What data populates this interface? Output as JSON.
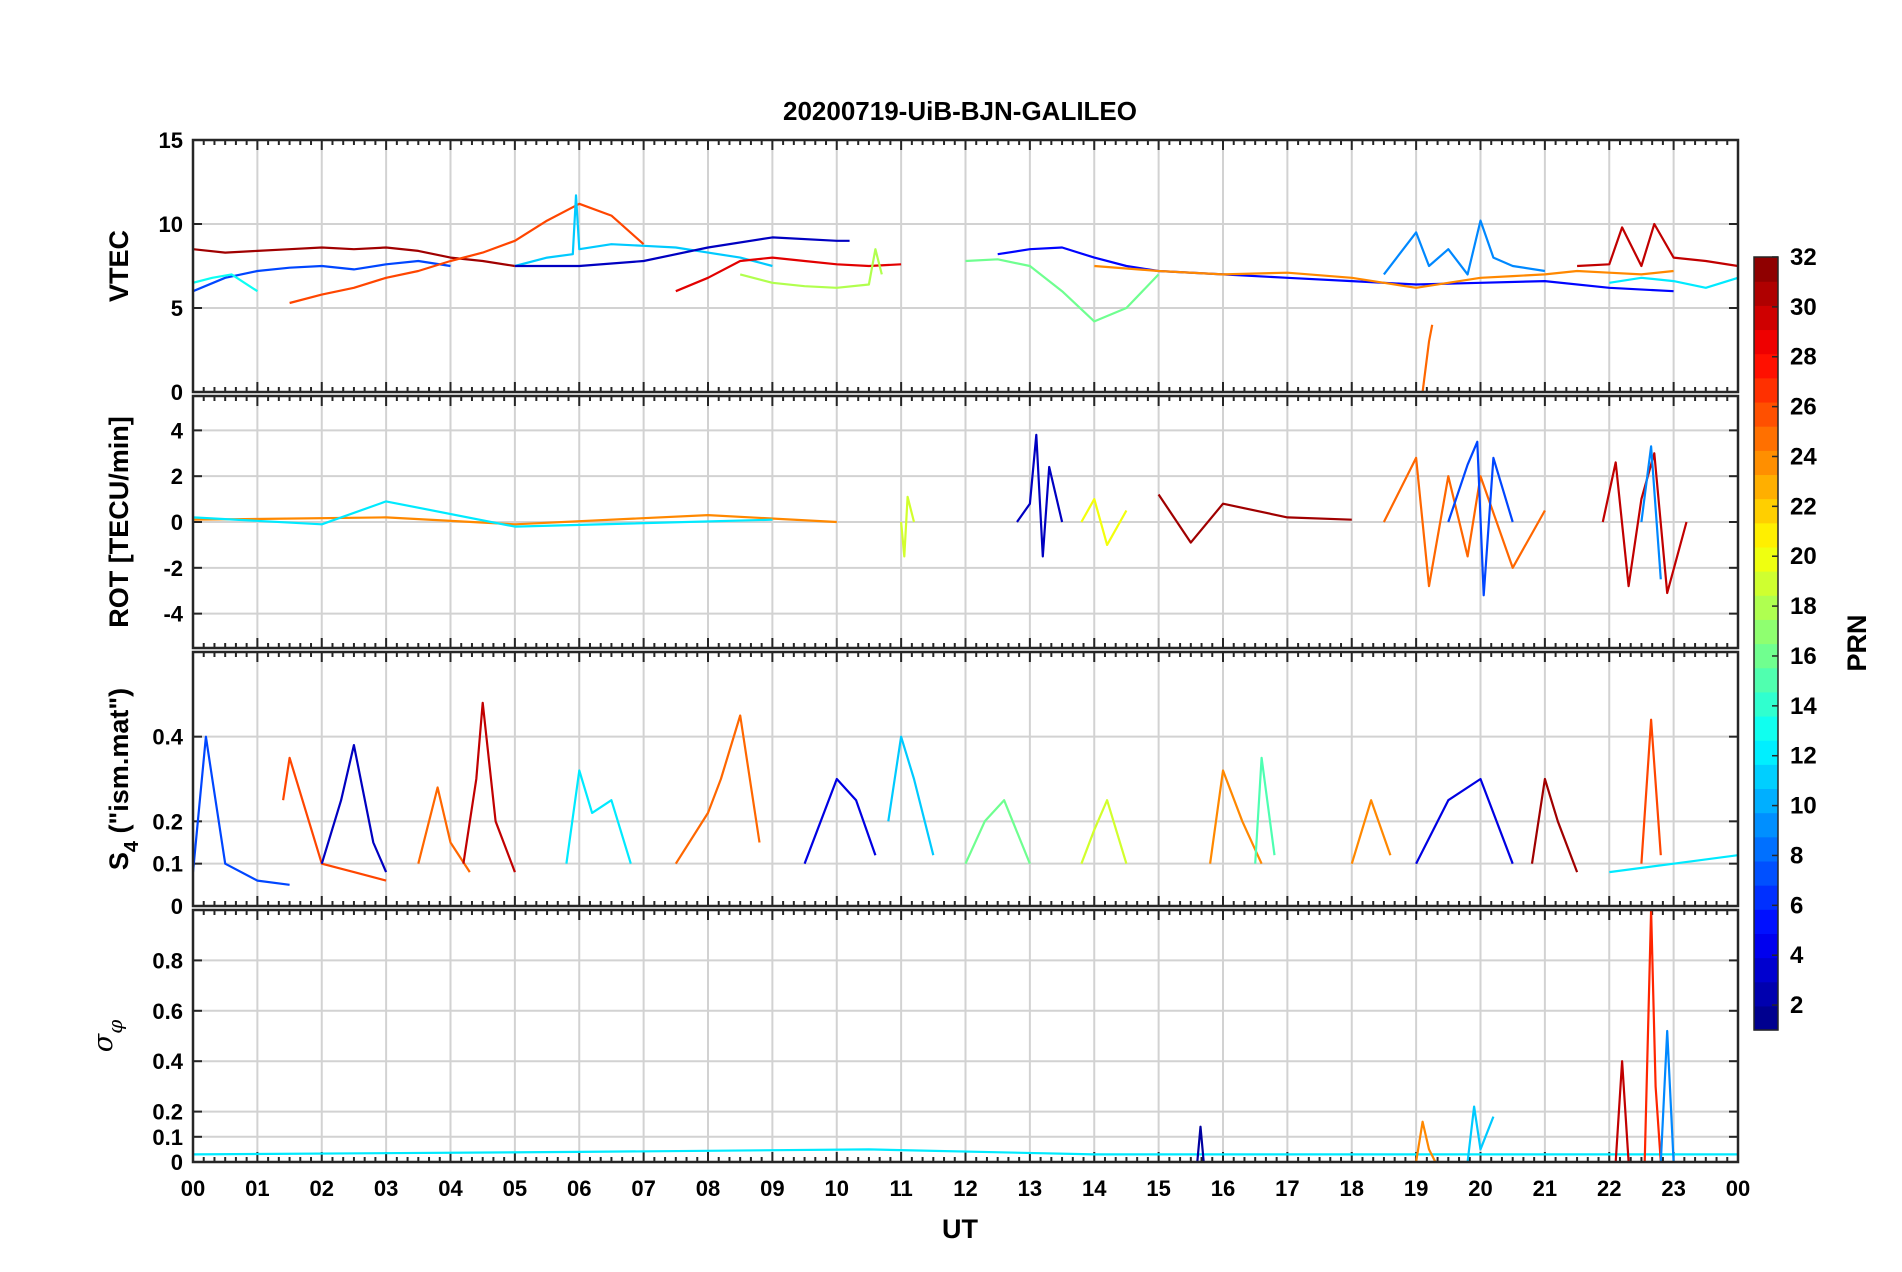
{
  "chart_data": {
    "type": "line",
    "title": "20200719-UiB-BJN-GALILEO",
    "xlabel": "UT",
    "x_tick_labels": [
      "00",
      "01",
      "02",
      "03",
      "04",
      "05",
      "06",
      "07",
      "08",
      "09",
      "10",
      "11",
      "12",
      "13",
      "14",
      "15",
      "16",
      "17",
      "18",
      "19",
      "20",
      "21",
      "22",
      "23",
      "00"
    ],
    "xlim_hours": [
      0,
      24
    ],
    "grid": true,
    "colorbar": {
      "label": "PRN",
      "range": [
        1,
        32
      ],
      "tick_labels": [
        "2",
        "4",
        "6",
        "8",
        "10",
        "12",
        "14",
        "16",
        "18",
        "20",
        "22",
        "24",
        "26",
        "28",
        "30",
        "32"
      ],
      "colormap": "jet",
      "placement": "right"
    },
    "panels": [
      {
        "id": "vtec",
        "ylabel": "VTEC",
        "ylim": [
          0,
          15
        ],
        "yticks": [
          0,
          5,
          10,
          15
        ],
        "series": [
          {
            "prn": 31,
            "x": [
              0,
              0.5,
              1,
              1.5,
              2,
              2.5,
              3,
              3.5,
              4,
              4.5,
              5
            ],
            "y": [
              8.5,
              8.3,
              8.4,
              8.5,
              8.6,
              8.5,
              8.6,
              8.4,
              8.0,
              7.8,
              7.5
            ]
          },
          {
            "prn": 7,
            "x": [
              0,
              0.5,
              1,
              1.5,
              2,
              2.5,
              3,
              3.5,
              4
            ],
            "y": [
              6.0,
              6.8,
              7.2,
              7.4,
              7.5,
              7.3,
              7.6,
              7.8,
              7.5
            ]
          },
          {
            "prn": 13,
            "x": [
              0,
              0.3,
              0.6,
              1.0
            ],
            "y": [
              6.5,
              6.8,
              7.0,
              6.0
            ]
          },
          {
            "prn": 26,
            "x": [
              1.5,
              2,
              2.5,
              3,
              3.5,
              4,
              4.5,
              5,
              5.5,
              6,
              6.5,
              7
            ],
            "y": [
              5.3,
              5.8,
              6.2,
              6.8,
              7.2,
              7.8,
              8.3,
              9.0,
              10.2,
              11.2,
              10.5,
              8.8
            ]
          },
          {
            "prn": 11,
            "x": [
              5,
              5.5,
              5.9,
              5.95,
              6,
              6.5,
              7,
              7.5,
              8,
              8.5,
              9
            ],
            "y": [
              7.5,
              8.0,
              8.2,
              11.7,
              8.5,
              8.8,
              8.7,
              8.6,
              8.3,
              8.0,
              7.5
            ]
          },
          {
            "prn": 3,
            "x": [
              5,
              6,
              7,
              8,
              9,
              10,
              10.2
            ],
            "y": [
              7.5,
              7.5,
              7.8,
              8.6,
              9.2,
              9.0,
              9.0
            ]
          },
          {
            "prn": 29,
            "x": [
              7.5,
              8,
              8.5,
              9,
              9.5,
              10,
              10.5,
              11
            ],
            "y": [
              6.0,
              6.8,
              7.8,
              8.0,
              7.8,
              7.6,
              7.5,
              7.6
            ]
          },
          {
            "prn": 18,
            "x": [
              8.5,
              9,
              9.5,
              10,
              10.5,
              10.6,
              10.7
            ],
            "y": [
              7.0,
              6.5,
              6.3,
              6.2,
              6.4,
              8.5,
              7.0
            ]
          },
          {
            "prn": 16,
            "x": [
              12,
              12.5,
              13,
              13.5,
              14,
              14.5,
              15
            ],
            "y": [
              7.8,
              7.9,
              7.5,
              6.0,
              4.2,
              5.0,
              7.0
            ]
          },
          {
            "prn": 5,
            "x": [
              12.5,
              13,
              13.5,
              14,
              14.5,
              15,
              16,
              17,
              18,
              19,
              20,
              21,
              22,
              23
            ],
            "y": [
              8.2,
              8.5,
              8.6,
              8.0,
              7.5,
              7.2,
              7.0,
              6.8,
              6.6,
              6.4,
              6.5,
              6.6,
              6.2,
              6.0
            ]
          },
          {
            "prn": 24,
            "x": [
              14,
              15,
              16,
              17,
              18,
              18.5,
              19,
              19.5,
              20,
              20.5,
              21,
              21.5,
              22,
              22.5,
              23
            ],
            "y": [
              7.5,
              7.2,
              7.0,
              7.1,
              6.8,
              6.5,
              6.2,
              6.5,
              6.8,
              6.9,
              7.0,
              7.2,
              7.1,
              7.0,
              7.2
            ]
          },
          {
            "prn": 9,
            "x": [
              18.5,
              19,
              19.2,
              19.5,
              19.8,
              20,
              20.2,
              20.5,
              21
            ],
            "y": [
              7.0,
              9.5,
              7.5,
              8.5,
              7.0,
              10.2,
              8.0,
              7.5,
              7.2
            ]
          },
          {
            "prn": 25,
            "x": [
              19.1,
              19.15,
              19.2,
              19.25
            ],
            "y": [
              0,
              1.5,
              3.0,
              4.0
            ]
          },
          {
            "prn": 30,
            "x": [
              21.5,
              22,
              22.2,
              22.5,
              22.7,
              23,
              23.5,
              24
            ],
            "y": [
              7.5,
              7.6,
              9.8,
              7.5,
              10.0,
              8.0,
              7.8,
              7.5
            ]
          },
          {
            "prn": 12,
            "x": [
              22,
              22.5,
              23,
              23.5,
              24
            ],
            "y": [
              6.5,
              6.8,
              6.6,
              6.2,
              6.8
            ]
          }
        ]
      },
      {
        "id": "rot",
        "ylabel": "ROT [TECU/min]",
        "ylim": [
          -5.5,
          5.5
        ],
        "yticks": [
          -4,
          -2,
          0,
          2,
          4
        ],
        "series": [
          {
            "prn": 24,
            "x": [
              0,
              3,
              5,
              8,
              10
            ],
            "y": [
              0.1,
              0.2,
              -0.1,
              0.3,
              0.0
            ]
          },
          {
            "prn": 12,
            "x": [
              0,
              2,
              3,
              5,
              9
            ],
            "y": [
              0.2,
              -0.1,
              0.9,
              -0.2,
              0.1
            ]
          },
          {
            "prn": 19,
            "x": [
              11,
              11.05,
              11.1,
              11.2
            ],
            "y": [
              0,
              -1.5,
              1.1,
              0
            ]
          },
          {
            "prn": 3,
            "x": [
              12.8,
              13,
              13.1,
              13.2,
              13.3,
              13.5
            ],
            "y": [
              0,
              0.8,
              3.8,
              -1.5,
              2.4,
              0
            ]
          },
          {
            "prn": 20,
            "x": [
              13.8,
              14,
              14.2,
              14.5
            ],
            "y": [
              0,
              1.0,
              -1.0,
              0.5
            ]
          },
          {
            "prn": 31,
            "x": [
              15,
              15.5,
              16,
              17,
              18
            ],
            "y": [
              1.2,
              -0.9,
              0.8,
              0.2,
              0.1
            ]
          },
          {
            "prn": 25,
            "x": [
              18.5,
              19,
              19.2,
              19.5,
              19.8,
              20,
              20.5,
              21
            ],
            "y": [
              0,
              2.8,
              -2.8,
              2.0,
              -1.5,
              2.0,
              -2.0,
              0.5
            ]
          },
          {
            "prn": 7,
            "x": [
              19.5,
              19.8,
              19.95,
              20.05,
              20.2,
              20.5
            ],
            "y": [
              0,
              2.5,
              3.5,
              -3.2,
              2.8,
              0
            ]
          },
          {
            "prn": 30,
            "x": [
              21.9,
              22.1,
              22.3,
              22.5,
              22.7,
              22.9,
              23.2
            ],
            "y": [
              0,
              2.6,
              -2.8,
              1.0,
              3.0,
              -3.1,
              0
            ]
          },
          {
            "prn": 9,
            "x": [
              22.5,
              22.65,
              22.8
            ],
            "y": [
              0,
              3.3,
              -2.5
            ]
          }
        ]
      },
      {
        "id": "s4",
        "ylabel": "S4 (\"ism.mat\")",
        "ylabel_text": "S",
        "ylabel_subscript": "4",
        "ylabel_suffix": " (\"ism.mat\")",
        "ylim": [
          0,
          0.6
        ],
        "yticks": [
          0,
          0.1,
          0.2,
          0.4
        ],
        "series": [
          {
            "prn": 7,
            "x": [
              0,
              0.2,
              0.3,
              0.5,
              1,
              1.5
            ],
            "y": [
              0.08,
              0.4,
              0.3,
              0.1,
              0.06,
              0.05
            ]
          },
          {
            "prn": 26,
            "x": [
              1.4,
              1.5,
              2,
              2.5,
              3
            ],
            "y": [
              0.25,
              0.35,
              0.1,
              0.08,
              0.06
            ]
          },
          {
            "prn": 3,
            "x": [
              2,
              2.3,
              2.5,
              2.8,
              3
            ],
            "y": [
              0.1,
              0.25,
              0.38,
              0.15,
              0.08
            ]
          },
          {
            "prn": 25,
            "x": [
              3.5,
              3.8,
              4,
              4.3
            ],
            "y": [
              0.1,
              0.28,
              0.15,
              0.08
            ]
          },
          {
            "prn": 30,
            "x": [
              4.2,
              4.4,
              4.5,
              4.7,
              5
            ],
            "y": [
              0.1,
              0.3,
              0.48,
              0.2,
              0.08
            ]
          },
          {
            "prn": 12,
            "x": [
              5.8,
              6,
              6.2,
              6.5,
              6.8
            ],
            "y": [
              0.1,
              0.32,
              0.22,
              0.25,
              0.1
            ]
          },
          {
            "prn": 25,
            "x": [
              7.5,
              8,
              8.2,
              8.5,
              8.8
            ],
            "y": [
              0.1,
              0.22,
              0.3,
              0.45,
              0.15
            ]
          },
          {
            "prn": 4,
            "x": [
              9.5,
              10,
              10.3,
              10.6
            ],
            "y": [
              0.1,
              0.3,
              0.25,
              0.12
            ]
          },
          {
            "prn": 11,
            "x": [
              10.8,
              11,
              11.2,
              11.5
            ],
            "y": [
              0.2,
              0.4,
              0.3,
              0.12
            ]
          },
          {
            "prn": 16,
            "x": [
              12,
              12.3,
              12.6,
              13
            ],
            "y": [
              0.1,
              0.2,
              0.25,
              0.1
            ]
          },
          {
            "prn": 19,
            "x": [
              13.8,
              14,
              14.2,
              14.5
            ],
            "y": [
              0.1,
              0.18,
              0.25,
              0.1
            ]
          },
          {
            "prn": 24,
            "x": [
              15.8,
              16,
              16.3,
              16.6
            ],
            "y": [
              0.1,
              0.32,
              0.2,
              0.1
            ]
          },
          {
            "prn": 15,
            "x": [
              16.5,
              16.6,
              16.8
            ],
            "y": [
              0.1,
              0.35,
              0.12
            ]
          },
          {
            "prn": 24,
            "x": [
              18,
              18.3,
              18.6
            ],
            "y": [
              0.1,
              0.25,
              0.12
            ]
          },
          {
            "prn": 4,
            "x": [
              19,
              19.5,
              20,
              20.5
            ],
            "y": [
              0.1,
              0.25,
              0.3,
              0.1
            ]
          },
          {
            "prn": 31,
            "x": [
              20.8,
              21,
              21.2,
              21.5
            ],
            "y": [
              0.1,
              0.3,
              0.2,
              0.08
            ]
          },
          {
            "prn": 26,
            "x": [
              22.5,
              22.65,
              22.8
            ],
            "y": [
              0.1,
              0.44,
              0.12
            ]
          },
          {
            "prn": 12,
            "x": [
              22,
              23,
              24
            ],
            "y": [
              0.08,
              0.1,
              0.12
            ]
          }
        ]
      },
      {
        "id": "sigma_phi",
        "ylabel": "σφ",
        "ylabel_text": "σ",
        "ylabel_subscript": "φ",
        "ylim": [
          0,
          1.0
        ],
        "yticks": [
          0,
          0.1,
          0.2,
          0.4,
          0.6,
          0.8
        ],
        "series": [
          {
            "prn": 12,
            "x": [
              0,
              6,
              10.5,
              14,
              24
            ],
            "y": [
              0.03,
              0.04,
              0.05,
              0.03,
              0.03
            ]
          },
          {
            "prn": 2,
            "x": [
              15.6,
              15.65,
              15.7
            ],
            "y": [
              0,
              0.14,
              0
            ]
          },
          {
            "prn": 24,
            "x": [
              19,
              19.1,
              19.2,
              19.3
            ],
            "y": [
              0,
              0.16,
              0.05,
              0
            ]
          },
          {
            "prn": 11,
            "x": [
              19.8,
              19.9,
              20,
              20.2
            ],
            "y": [
              0,
              0.22,
              0.05,
              0.18
            ]
          },
          {
            "prn": 30,
            "x": [
              22.1,
              22.2,
              22.3
            ],
            "y": [
              0,
              0.4,
              0
            ]
          },
          {
            "prn": 27,
            "x": [
              22.55,
              22.65,
              22.72,
              22.8
            ],
            "y": [
              0,
              1.0,
              0.3,
              0
            ]
          },
          {
            "prn": 9,
            "x": [
              22.8,
              22.9,
              23
            ],
            "y": [
              0,
              0.52,
              0
            ]
          }
        ]
      }
    ]
  }
}
